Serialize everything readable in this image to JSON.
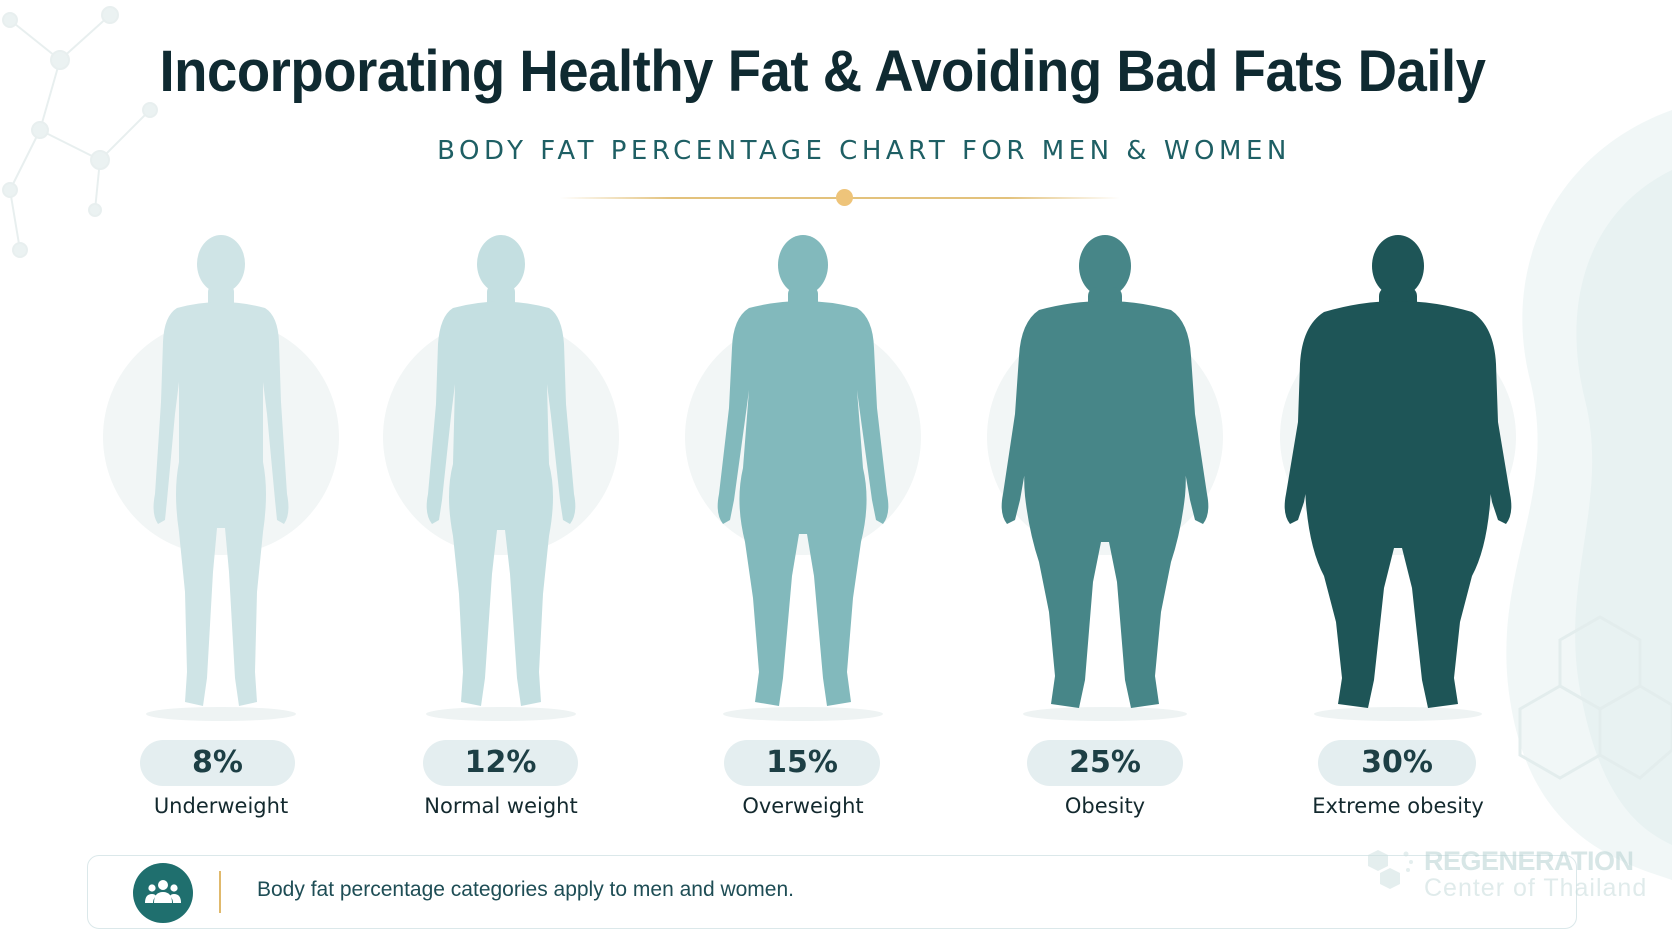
{
  "header": {
    "title": "Incorporating Healthy Fat & Avoiding Bad Fats Daily",
    "subtitle": "BODY FAT PERCENTAGE CHART FOR MEN & WOMEN"
  },
  "categories": [
    {
      "percent": "8%",
      "label": "Underweight",
      "color": "#cfe4e6"
    },
    {
      "percent": "12%",
      "label": "Normal weight",
      "color": "#c4dfe1"
    },
    {
      "percent": "15%",
      "label": "Overweight",
      "color": "#82b9bc"
    },
    {
      "percent": "25%",
      "label": "Obesity",
      "color": "#478688"
    },
    {
      "percent": "30%",
      "label": "Extreme obesity",
      "color": "#1e5557"
    }
  ],
  "note": {
    "icon": "people-group-icon",
    "text": "Body fat percentage categories apply to men and women."
  },
  "watermark": {
    "line1": "REGENERATION",
    "line2": "Center of Thailand"
  },
  "colors": {
    "title": "#0f2a31",
    "subtitle": "#1e5f64",
    "accent": "#eec47a",
    "badge_bg": "#e4eef0"
  }
}
